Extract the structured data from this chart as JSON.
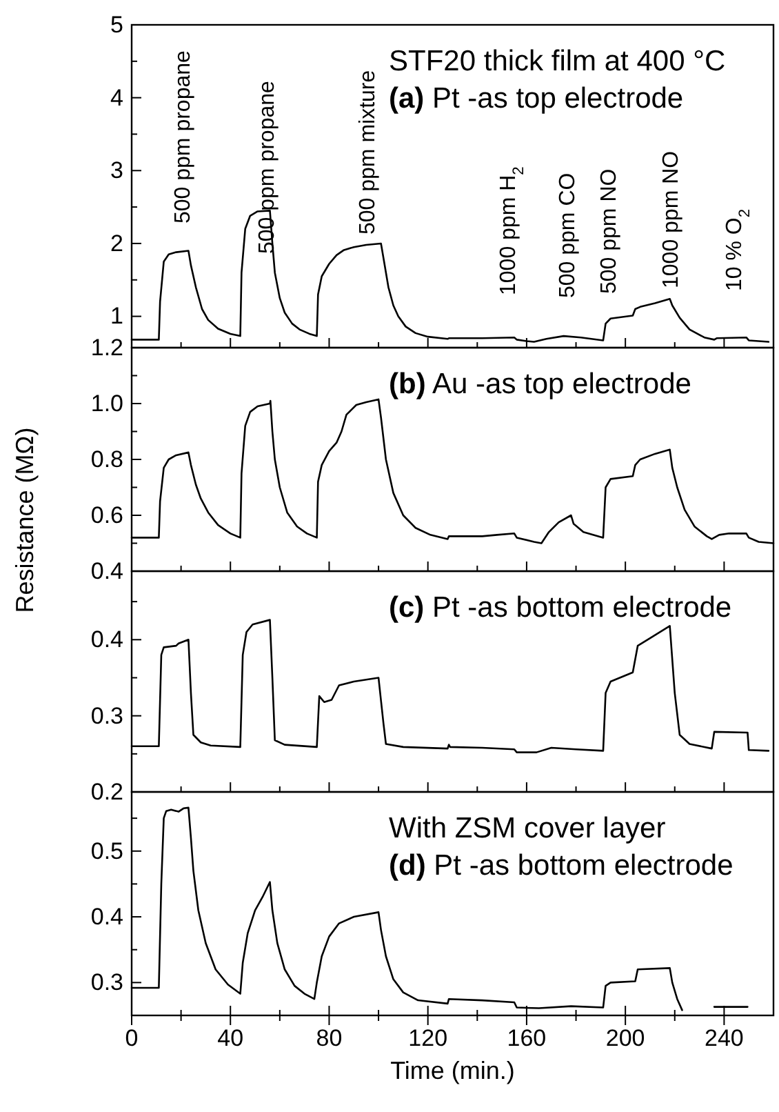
{
  "chart_data": [
    {
      "type": "line",
      "title": "STF20 thick film at 400 °C",
      "subtitle": "(a) Pt -as top electrode",
      "xlim": [
        0,
        260
      ],
      "xticks": [
        0,
        {
          "value": 20,
          "label": null
        },
        40,
        {
          "value": 60,
          "label": null
        },
        80,
        {
          "value": 100,
          "label": null
        },
        120,
        {
          "value": 140,
          "label": null
        },
        160,
        {
          "value": 180,
          "label": null
        },
        200,
        {
          "value": 220,
          "label": null
        },
        240
      ],
      "ylim": [
        0.57,
        5
      ],
      "yticks": [
        1,
        {
          "value": 1.5,
          "label": null
        },
        2,
        {
          "value": 2.5,
          "label": null
        },
        3,
        {
          "value": 3.5,
          "label": null
        },
        4,
        {
          "value": 4.5,
          "label": null
        },
        5
      ],
      "tick_labels": "y",
      "grid": false,
      "annotations": [
        "500 ppm propane",
        "500 ppm propane",
        "500 ppm mixture",
        "1000 ppm H$_{2}$",
        "500 ppm CO",
        "500 ppm NO",
        "1000 ppm NO",
        "10 % O$_{2}$"
      ],
      "series": [
        {
          "color": "#000000",
          "x": [
            0,
            11,
            11.5,
            13,
            15,
            18,
            23,
            24,
            26,
            28.5,
            31,
            35,
            40,
            44,
            44.5,
            46,
            48,
            51,
            56,
            57,
            58,
            60,
            62,
            65,
            68,
            72,
            75,
            75.5,
            77,
            80,
            83,
            86,
            90,
            95,
            101,
            102,
            104,
            106,
            108,
            111,
            115,
            120,
            128,
            128.5,
            142,
            155,
            156,
            160,
            163,
            168,
            175,
            182,
            191,
            192,
            194,
            203,
            204,
            206,
            212,
            218,
            219,
            222,
            226,
            232,
            236,
            237,
            249,
            250,
            258
          ],
          "values": [
            0.68,
            0.68,
            1.2,
            1.75,
            1.85,
            1.88,
            1.9,
            1.7,
            1.4,
            1.1,
            0.95,
            0.83,
            0.76,
            0.73,
            1.6,
            2.2,
            2.38,
            2.44,
            2.45,
            2.0,
            1.6,
            1.25,
            1.05,
            0.9,
            0.82,
            0.76,
            0.73,
            1.3,
            1.55,
            1.72,
            1.84,
            1.91,
            1.95,
            1.98,
            2.0,
            1.8,
            1.4,
            1.15,
            1.0,
            0.86,
            0.77,
            0.72,
            0.69,
            0.7,
            0.7,
            0.71,
            0.68,
            0.66,
            0.65,
            0.69,
            0.73,
            0.71,
            0.67,
            0.9,
            0.97,
            1.01,
            1.1,
            1.13,
            1.18,
            1.24,
            1.15,
            0.98,
            0.82,
            0.71,
            0.68,
            0.7,
            0.71,
            0.67,
            0.65
          ]
        }
      ]
    },
    {
      "type": "line",
      "title": "(b) Au -as top electrode",
      "ylabel": "Resistance (MΩ)",
      "xlim": [
        0,
        260
      ],
      "xticks": [
        0,
        {
          "value": 20,
          "label": null
        },
        40,
        {
          "value": 60,
          "label": null
        },
        80,
        {
          "value": 100,
          "label": null
        },
        120,
        {
          "value": 140,
          "label": null
        },
        160,
        {
          "value": 180,
          "label": null
        },
        200,
        {
          "value": 220,
          "label": null
        },
        240
      ],
      "ylim": [
        0.4,
        1.2
      ],
      "yticks": [
        {
          "value": 0.4,
          "label": "0.4"
        },
        {
          "value": 0.5,
          "label": null
        },
        {
          "value": 0.6,
          "label": "0.6"
        },
        {
          "value": 0.7,
          "label": null
        },
        {
          "value": 0.8,
          "label": "0.8"
        },
        {
          "value": 0.9,
          "label": null
        },
        {
          "value": 1,
          "label": "1.0"
        },
        {
          "value": 1.1,
          "label": null
        },
        {
          "value": 1.2,
          "label": "1.2"
        }
      ],
      "tick_labels": "y",
      "grid": false,
      "series": [
        {
          "color": "#000000",
          "x": [
            0,
            11,
            11.5,
            13,
            15,
            18,
            23,
            24,
            26,
            28,
            31,
            35,
            40,
            44,
            44.5,
            46,
            48,
            51,
            56,
            56.2,
            57,
            58,
            60,
            63,
            67,
            71,
            75,
            75.5,
            77,
            80,
            83,
            85,
            87,
            91,
            95,
            100,
            101,
            103,
            106,
            110,
            115,
            121,
            128,
            128.5,
            142,
            148,
            155,
            156,
            163,
            166,
            169,
            173,
            178,
            179,
            183,
            191,
            192,
            194,
            203,
            204,
            206,
            212,
            218,
            219,
            221,
            224,
            228,
            233,
            235,
            238,
            242,
            249,
            250,
            254,
            260
          ],
          "values": [
            0.52,
            0.52,
            0.65,
            0.77,
            0.8,
            0.815,
            0.825,
            0.78,
            0.71,
            0.66,
            0.61,
            0.565,
            0.535,
            0.52,
            0.75,
            0.92,
            0.97,
            0.99,
            1.0,
            1.01,
            0.9,
            0.8,
            0.7,
            0.61,
            0.56,
            0.535,
            0.52,
            0.72,
            0.78,
            0.83,
            0.86,
            0.9,
            0.96,
            0.995,
            1.005,
            1.015,
            0.95,
            0.8,
            0.68,
            0.6,
            0.555,
            0.53,
            0.515,
            0.525,
            0.525,
            0.53,
            0.535,
            0.52,
            0.505,
            0.5,
            0.54,
            0.575,
            0.6,
            0.57,
            0.54,
            0.52,
            0.7,
            0.73,
            0.74,
            0.78,
            0.8,
            0.82,
            0.835,
            0.77,
            0.7,
            0.62,
            0.56,
            0.525,
            0.515,
            0.53,
            0.535,
            0.535,
            0.52,
            0.505,
            0.5
          ]
        }
      ]
    },
    {
      "type": "line",
      "title": "(c) Pt -as bottom electrode",
      "xlim": [
        0,
        260
      ],
      "xticks": [
        0,
        {
          "value": 20,
          "label": null
        },
        40,
        {
          "value": 60,
          "label": null
        },
        80,
        {
          "value": 100,
          "label": null
        },
        120,
        {
          "value": 140,
          "label": null
        },
        160,
        {
          "value": 180,
          "label": null
        },
        200,
        {
          "value": 220,
          "label": null
        },
        240
      ],
      "ylim": [
        0.2,
        0.49
      ],
      "yticks": [
        0.2,
        {
          "value": 0.25,
          "label": null
        },
        0.3,
        {
          "value": 0.35,
          "label": null
        },
        0.4,
        {
          "value": 0.45,
          "label": null
        }
      ],
      "tick_labels": "y",
      "grid": false,
      "series": [
        {
          "color": "#000000",
          "x": [
            0,
            11,
            12,
            13,
            18,
            19,
            23,
            24,
            25,
            28,
            32,
            44,
            45,
            46.5,
            49,
            56,
            57,
            58,
            62,
            75,
            76,
            78,
            81,
            84,
            90,
            100,
            102,
            103,
            110,
            128,
            128.5,
            129,
            142,
            155,
            156,
            164,
            170,
            180,
            191,
            192,
            194,
            203,
            205,
            210,
            218,
            220,
            222,
            226,
            235,
            236,
            249.5,
            250,
            258
          ],
          "values": [
            0.26,
            0.26,
            0.38,
            0.39,
            0.392,
            0.395,
            0.4,
            0.33,
            0.275,
            0.265,
            0.261,
            0.259,
            0.38,
            0.41,
            0.42,
            0.426,
            0.35,
            0.268,
            0.262,
            0.259,
            0.326,
            0.318,
            0.321,
            0.34,
            0.345,
            0.35,
            0.29,
            0.263,
            0.259,
            0.257,
            0.262,
            0.259,
            0.258,
            0.256,
            0.252,
            0.252,
            0.258,
            0.256,
            0.254,
            0.33,
            0.345,
            0.357,
            0.392,
            0.402,
            0.418,
            0.33,
            0.275,
            0.263,
            0.257,
            0.279,
            0.278,
            0.255,
            0.254
          ]
        }
      ]
    },
    {
      "type": "line",
      "title": "With ZSM cover layer",
      "subtitle": "(d) Pt -as bottom electrode",
      "xlabel": "Time (min.)",
      "xlim": [
        0,
        260
      ],
      "xticks": [
        0,
        {
          "value": 20,
          "label": null
        },
        40,
        {
          "value": 60,
          "label": null
        },
        80,
        {
          "value": 100,
          "label": null
        },
        120,
        {
          "value": 140,
          "label": null
        },
        160,
        {
          "value": 180,
          "label": null
        },
        200,
        {
          "value": 220,
          "label": null
        },
        240
      ],
      "ylim": [
        0.25,
        0.59
      ],
      "yticks": [
        0.3,
        {
          "value": 0.35,
          "label": null
        },
        0.4,
        {
          "value": 0.45,
          "label": null
        },
        0.5,
        {
          "value": 0.55,
          "label": null
        }
      ],
      "grid": false,
      "series": [
        {
          "color": "#000000",
          "x": [
            0,
            11,
            12,
            13,
            14,
            16,
            19,
            21,
            23,
            24,
            25,
            27,
            30,
            34,
            39,
            44,
            45,
            47,
            50,
            53,
            56,
            57,
            59,
            62,
            66,
            70,
            74,
            75,
            77,
            80,
            84,
            90,
            100,
            101,
            103,
            106,
            110,
            116,
            128,
            128.5,
            142,
            155,
            156,
            165,
            178,
            191,
            192,
            194,
            204,
            205,
            218,
            219,
            221,
            223,
            225,
            236,
            249.5
          ],
          "values": [
            0.292,
            0.292,
            0.45,
            0.55,
            0.561,
            0.563,
            0.56,
            0.565,
            0.566,
            0.52,
            0.47,
            0.41,
            0.36,
            0.32,
            0.297,
            0.283,
            0.33,
            0.375,
            0.41,
            0.43,
            0.453,
            0.41,
            0.36,
            0.32,
            0.295,
            0.283,
            0.275,
            0.3,
            0.34,
            0.37,
            0.39,
            0.4,
            0.407,
            0.38,
            0.34,
            0.305,
            0.285,
            0.273,
            0.268,
            0.275,
            0.273,
            0.27,
            0.262,
            0.261,
            0.264,
            0.262,
            0.295,
            0.3,
            0.302,
            0.32,
            0.322,
            0.3,
            0.275,
            0.258,
            null,
            0.263,
            0.263
          ]
        }
      ]
    }
  ]
}
